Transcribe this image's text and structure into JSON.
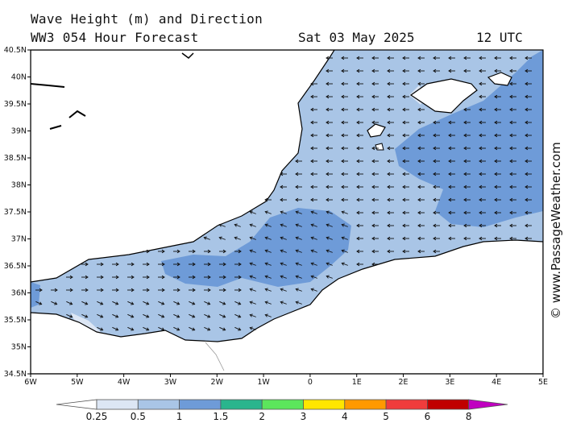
{
  "header": {
    "title_line1": "Wave Height (m) and Direction",
    "title_line2": "WW3 054 Hour Forecast",
    "date": "Sat 03 May 2025",
    "time": "12 UTC"
  },
  "watermark": "© www.PassageWeather.com",
  "map": {
    "lon_ticks": [
      "6W",
      "5W",
      "4W",
      "3W",
      "2W",
      "1W",
      "0",
      "1E",
      "2E",
      "3E",
      "4E",
      "5E"
    ],
    "lat_ticks": [
      "40.5N",
      "40N",
      "39.5N",
      "39N",
      "38.5N",
      "38N",
      "37.5N",
      "37N",
      "36.5N",
      "36N",
      "35.5N",
      "35N",
      "34.5N"
    ],
    "lon_range": [
      -6,
      5
    ],
    "lat_range": [
      34.5,
      40.5
    ],
    "colors": {
      "land": "#ffffff",
      "sea_0_5_1": "#a9c5e6",
      "sea_1_1_5": "#6e9bd8",
      "sea_0_25_0_5": "#dce6f4",
      "coast": "#000000"
    }
  },
  "scale": {
    "labels": [
      "0.25",
      "0.5",
      "1",
      "1.5",
      "2",
      "3",
      "4",
      "5",
      "6",
      "8"
    ],
    "colors": [
      "#dce6f4",
      "#a9c5e6",
      "#6e9bd8",
      "#2ab58d",
      "#5ce65c",
      "#ffe600",
      "#ff9900",
      "#f03c3c",
      "#c00000",
      "#c000c0"
    ]
  }
}
